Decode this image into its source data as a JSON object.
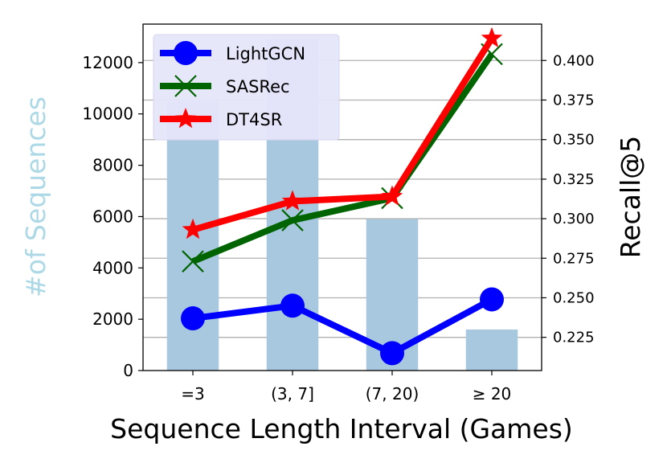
{
  "chart_data": {
    "type": "bar+line",
    "title": "",
    "xlabel": "Sequence Length Interval (Games)",
    "ylabel_left": "#of Sequences",
    "ylabel_right": "Recall@5",
    "categories": [
      "=3",
      "(3, 7]",
      "(7, 20)",
      "≥ 20"
    ],
    "bars": {
      "values": [
        10500,
        12900,
        5900,
        1600
      ],
      "color": "#a8c8e0"
    },
    "y_left": {
      "lim": [
        0,
        13500
      ],
      "ticks": [
        "0",
        "2000",
        "4000",
        "6000",
        "8000",
        "10000",
        "12000"
      ],
      "label_color": "#add8e6"
    },
    "y_right": {
      "lim": [
        0.204,
        0.423
      ],
      "ticks": [
        "0.225",
        "0.250",
        "0.275",
        "0.300",
        "0.325",
        "0.350",
        "0.375",
        "0.400"
      ]
    },
    "grid": "horizontal, right axis",
    "legend_position": "top-left",
    "series": [
      {
        "name": "LightGCN",
        "values": [
          0.237,
          0.245,
          0.215,
          0.249
        ],
        "color": "#0000ff",
        "marker": "circle"
      },
      {
        "name": "SASRec",
        "values": [
          0.273,
          0.299,
          0.313,
          0.404
        ],
        "color": "#006400",
        "marker": "x"
      },
      {
        "name": "DT4SR",
        "values": [
          0.293,
          0.311,
          0.314,
          0.414
        ],
        "color": "#ff0000",
        "marker": "star"
      }
    ]
  }
}
